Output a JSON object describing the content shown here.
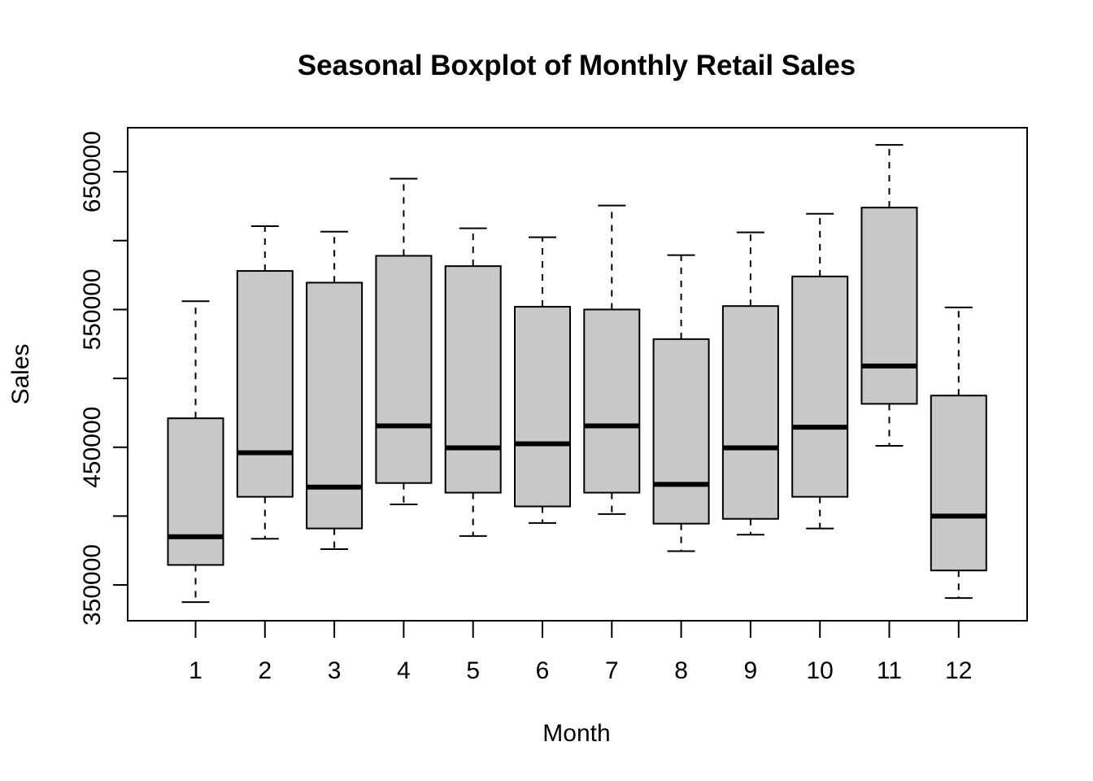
{
  "chart_data": {
    "type": "boxplot",
    "title": "Seasonal Boxplot of Monthly Retail Sales",
    "xlabel": "Month",
    "ylabel": "Sales",
    "ylim": [
      324000,
      682000
    ],
    "yticks": [
      350000,
      400000,
      450000,
      500000,
      550000,
      600000,
      650000
    ],
    "ytick_labels": [
      "350000",
      "",
      "450000",
      "",
      "550000",
      "",
      "650000"
    ],
    "categories": [
      "1",
      "2",
      "3",
      "4",
      "5",
      "6",
      "7",
      "8",
      "9",
      "10",
      "11",
      "12"
    ],
    "boxes": [
      {
        "min": 337500,
        "q1": 364500,
        "median": 385000,
        "q3": 471000,
        "max": 556000
      },
      {
        "min": 383500,
        "q1": 414000,
        "median": 446000,
        "q3": 578000,
        "max": 610500
      },
      {
        "min": 376000,
        "q1": 391000,
        "median": 421000,
        "q3": 569500,
        "max": 606500
      },
      {
        "min": 408500,
        "q1": 424000,
        "median": 465500,
        "q3": 589000,
        "max": 645000
      },
      {
        "min": 385500,
        "q1": 417000,
        "median": 449500,
        "q3": 581500,
        "max": 609000
      },
      {
        "min": 395000,
        "q1": 407000,
        "median": 452500,
        "q3": 552000,
        "max": 602500
      },
      {
        "min": 401500,
        "q1": 417000,
        "median": 465500,
        "q3": 550000,
        "max": 625500
      },
      {
        "min": 374500,
        "q1": 394500,
        "median": 423000,
        "q3": 528500,
        "max": 589500
      },
      {
        "min": 386500,
        "q1": 398000,
        "median": 449500,
        "q3": 552500,
        "max": 606000
      },
      {
        "min": 391000,
        "q1": 414000,
        "median": 464500,
        "q3": 574000,
        "max": 619500
      },
      {
        "min": 451000,
        "q1": 481500,
        "median": 509000,
        "q3": 624000,
        "max": 669500
      },
      {
        "min": 340500,
        "q1": 360500,
        "median": 400000,
        "q3": 487500,
        "max": 551500
      }
    ],
    "grid": false,
    "colors": {
      "box_fill": "#c8c8c8",
      "stroke": "#000000"
    }
  }
}
